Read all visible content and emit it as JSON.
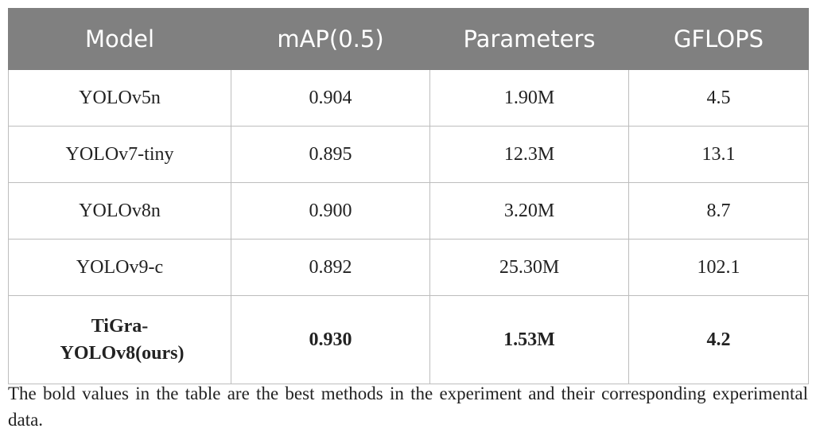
{
  "table": {
    "header": [
      "Model",
      "mAP(0.5)",
      "Parameters",
      "GFLOPS"
    ],
    "rows": [
      [
        "YOLOv5n",
        "0.904",
        "1.90M",
        "4.5"
      ],
      [
        "YOLOv7-tiny",
        "0.895",
        "12.3M",
        "13.1"
      ],
      [
        "YOLOv8n",
        "0.900",
        "3.20M",
        "8.7"
      ],
      [
        "YOLOv9-c",
        "0.892",
        "25.30M",
        "102.1"
      ],
      [
        "TiGra-YOLOv8(ours)",
        "0.930",
        "1.53M",
        "4.2"
      ]
    ]
  },
  "caption": "The bold values in the table are the best methods in the experiment and their corresponding experimental data."
}
